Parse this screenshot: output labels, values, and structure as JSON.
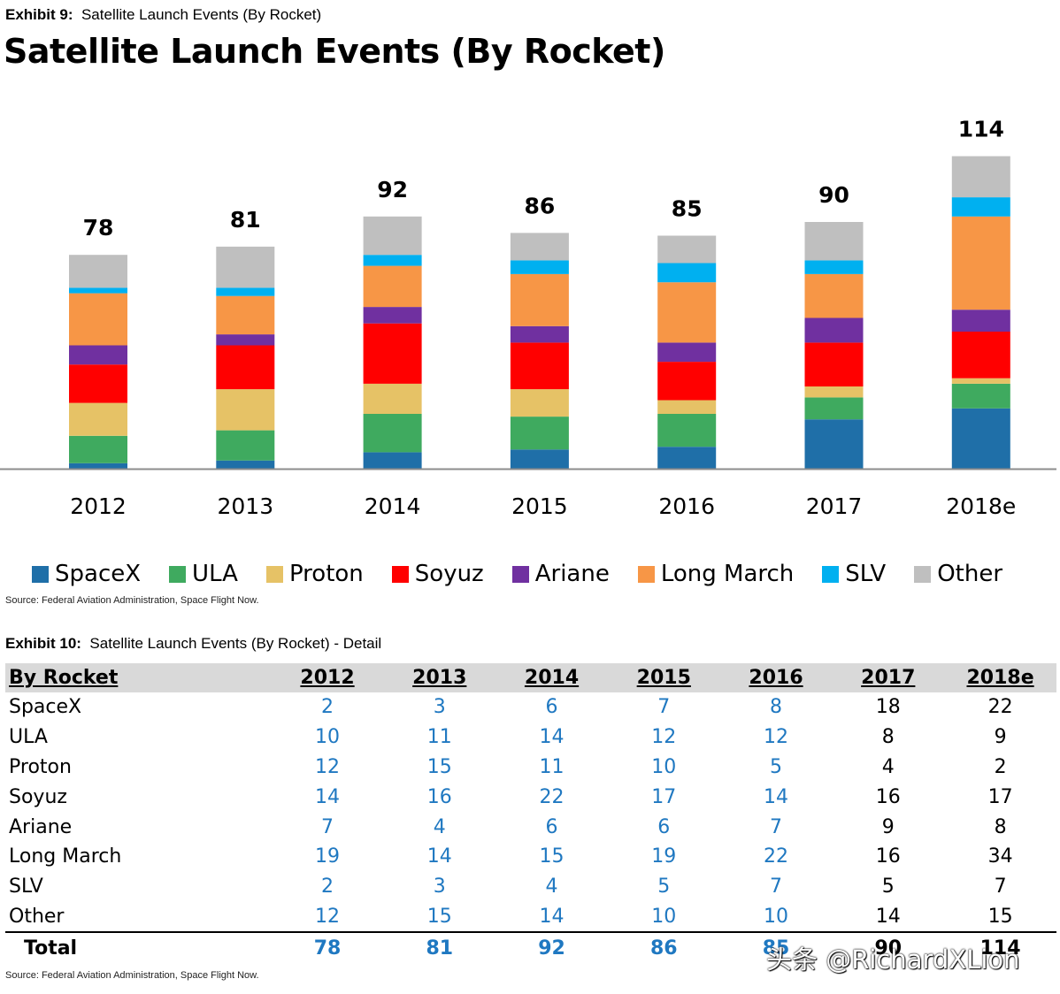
{
  "exhibit9": {
    "caption_prefix": "Exhibit 9:",
    "caption_text": "Satellite Launch Events (By Rocket)",
    "source": "Source: Federal Aviation Administration, Space Flight Now."
  },
  "chart_data": {
    "type": "bar",
    "stacked": true,
    "title": "Satellite Launch Events (By Rocket)",
    "categories": [
      "2012",
      "2013",
      "2014",
      "2015",
      "2016",
      "2017",
      "2018e"
    ],
    "totals": [
      78,
      81,
      92,
      86,
      85,
      90,
      114
    ],
    "series": [
      {
        "name": "SpaceX",
        "color": "#1f6fa8",
        "values": [
          2,
          3,
          6,
          7,
          8,
          18,
          22
        ]
      },
      {
        "name": "ULA",
        "color": "#3faa5f",
        "values": [
          10,
          11,
          14,
          12,
          12,
          8,
          9
        ]
      },
      {
        "name": "Proton",
        "color": "#e6c266",
        "values": [
          12,
          15,
          11,
          10,
          5,
          4,
          2
        ]
      },
      {
        "name": "Soyuz",
        "color": "#ff0000",
        "values": [
          14,
          16,
          22,
          17,
          14,
          16,
          17
        ]
      },
      {
        "name": "Ariane",
        "color": "#7030a0",
        "values": [
          7,
          4,
          6,
          6,
          7,
          9,
          8
        ]
      },
      {
        "name": "Long March",
        "color": "#f79646",
        "values": [
          19,
          14,
          15,
          19,
          22,
          16,
          34
        ]
      },
      {
        "name": "SLV",
        "color": "#00b0f0",
        "values": [
          2,
          3,
          4,
          5,
          7,
          5,
          7
        ]
      },
      {
        "name": "Other",
        "color": "#bfbfbf",
        "values": [
          12,
          15,
          14,
          10,
          10,
          14,
          15
        ]
      }
    ],
    "legend": "bottom"
  },
  "exhibit10": {
    "caption_prefix": "Exhibit 10:",
    "caption_text": "Satellite Launch Events (By Rocket) - Detail",
    "header": [
      "By Rocket",
      "2012",
      "2013",
      "2014",
      "2015",
      "2016",
      "2017",
      "2018e"
    ],
    "rows": [
      {
        "label": "SpaceX",
        "values": [
          "2",
          "3",
          "6",
          "7",
          "8",
          "18",
          "22"
        ]
      },
      {
        "label": "ULA",
        "values": [
          "10",
          "11",
          "14",
          "12",
          "12",
          "8",
          "9"
        ]
      },
      {
        "label": "Proton",
        "values": [
          "12",
          "15",
          "11",
          "10",
          "5",
          "4",
          "2"
        ]
      },
      {
        "label": "Soyuz",
        "values": [
          "14",
          "16",
          "22",
          "17",
          "14",
          "16",
          "17"
        ]
      },
      {
        "label": "Ariane",
        "values": [
          "7",
          "4",
          "6",
          "6",
          "7",
          "9",
          "8"
        ]
      },
      {
        "label": "Long March",
        "values": [
          "19",
          "14",
          "15",
          "19",
          "22",
          "16",
          "34"
        ]
      },
      {
        "label": "SLV",
        "values": [
          "2",
          "3",
          "4",
          "5",
          "7",
          "5",
          "7"
        ]
      },
      {
        "label": "Other",
        "values": [
          "12",
          "15",
          "14",
          "10",
          "10",
          "14",
          "15"
        ]
      }
    ],
    "total": {
      "label": "Total",
      "values": [
        "78",
        "81",
        "92",
        "86",
        "85",
        "90",
        "114"
      ]
    },
    "source": "Source: Federal Aviation Administration, Space Flight Now.",
    "blue_color": "#1f78c1"
  },
  "watermark": "头条 @RichardXLion"
}
